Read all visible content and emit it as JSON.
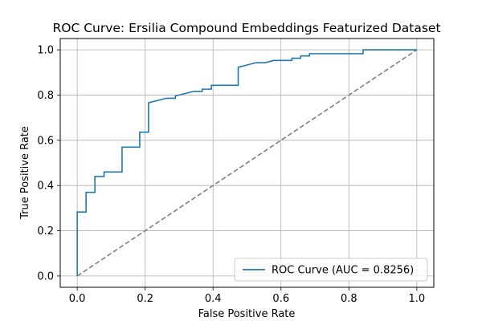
{
  "chart_data": {
    "type": "line",
    "title": "ROC Curve: Ersilia Compound Embeddings Featurized Dataset",
    "xlabel": "False Positive Rate",
    "ylabel": "True Positive Rate",
    "xlim": [
      -0.05,
      1.05
    ],
    "ylim": [
      -0.05,
      1.05
    ],
    "xticks": [
      0.0,
      0.2,
      0.4,
      0.6,
      0.8,
      1.0
    ],
    "yticks": [
      0.0,
      0.2,
      0.4,
      0.6,
      0.8,
      1.0
    ],
    "xtick_labels": [
      "0.0",
      "0.2",
      "0.4",
      "0.6",
      "0.8",
      "1.0"
    ],
    "ytick_labels": [
      "0.0",
      "0.2",
      "0.4",
      "0.6",
      "0.8",
      "1.0"
    ],
    "grid": true,
    "legend_position": "lower-right",
    "series": [
      {
        "name": "ROC Curve (AUC = 0.8256)",
        "color": "#1f77b4",
        "style": "solid",
        "x": [
          0.0,
          0.0,
          0.0,
          0.026,
          0.026,
          0.052,
          0.052,
          0.079,
          0.079,
          0.132,
          0.132,
          0.184,
          0.184,
          0.21,
          0.21,
          0.237,
          0.263,
          0.289,
          0.289,
          0.316,
          0.342,
          0.368,
          0.368,
          0.395,
          0.395,
          0.474,
          0.474,
          0.5,
          0.526,
          0.553,
          0.579,
          0.605,
          0.632,
          0.632,
          0.658,
          0.658,
          0.684,
          0.684,
          0.711,
          0.737,
          0.763,
          0.789,
          0.816,
          0.842,
          0.842,
          0.868,
          0.895,
          0.921,
          0.947,
          0.974,
          1.0
        ],
        "y": [
          0.0,
          0.283,
          0.283,
          0.283,
          0.37,
          0.37,
          0.44,
          0.44,
          0.46,
          0.46,
          0.57,
          0.57,
          0.636,
          0.636,
          0.766,
          0.776,
          0.786,
          0.786,
          0.796,
          0.806,
          0.816,
          0.816,
          0.826,
          0.826,
          0.843,
          0.843,
          0.923,
          0.933,
          0.943,
          0.943,
          0.953,
          0.953,
          0.953,
          0.963,
          0.963,
          0.973,
          0.973,
          0.983,
          0.983,
          0.983,
          0.983,
          0.983,
          0.983,
          0.983,
          1.0,
          1.0,
          1.0,
          1.0,
          1.0,
          1.0,
          1.0
        ]
      },
      {
        "name": "",
        "color": "#808080",
        "style": "dashed",
        "x": [
          0.0,
          1.0
        ],
        "y": [
          0.0,
          1.0
        ]
      }
    ]
  }
}
